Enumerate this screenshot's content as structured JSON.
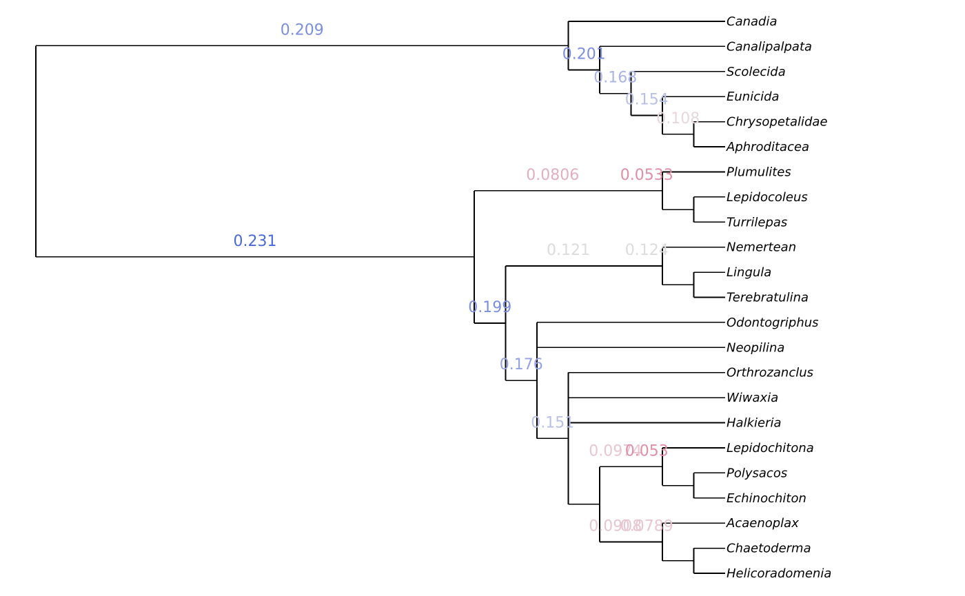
{
  "chart_data": {
    "type": "phylogenetic-tree",
    "tips": [
      "Canadia",
      "Canalipalpata",
      "Scolecida",
      "Eunicida",
      "Chrysopetalidae",
      "Aphroditacea",
      "Plumulites",
      "Lepidocoleus",
      "Turrilepas",
      "Nemertean",
      "Lingula",
      "Terebratulina",
      "Odontogriphus",
      "Neopilina",
      "Orthrozanclus",
      "Wiwaxia",
      "Halkieria",
      "Lepidochitona",
      "Polysacos",
      "Echinochiton",
      "Acaenoplax",
      "Chaetoderma",
      "Helicoradomenia"
    ],
    "tree": {
      "children": [
        {
          "label": "0.209",
          "color": "#7b8edf",
          "children": [
            {
              "tip": "Canadia"
            },
            {
              "label": "0.201",
              "color": "#7b8edf",
              "children": [
                {
                  "tip": "Canalipalpata"
                },
                {
                  "label": "0.168",
                  "color": "#a9b4e6",
                  "children": [
                    {
                      "tip": "Scolecida"
                    },
                    {
                      "label": "0.154",
                      "color": "#b9c0e6",
                      "children": [
                        {
                          "tip": "Eunicida"
                        },
                        {
                          "label": "0.108",
                          "color": "#e8d6dd",
                          "children": [
                            {
                              "tip": "Chrysopetalidae"
                            },
                            {
                              "tip": "Aphroditacea"
                            }
                          ]
                        }
                      ]
                    }
                  ]
                }
              ]
            }
          ]
        },
        {
          "label": "0.231",
          "color": "#4a69d9",
          "children": [
            {
              "label": "0.0806",
              "color": "#e3aebf",
              "children": [
                {
                  "label": "0.0533",
                  "color": "#e08ea6",
                  "children": [
                    {
                      "tip": "Plumulites"
                    },
                    {
                      "children": [
                        {
                          "tip": "Lepidocoleus"
                        },
                        {
                          "tip": "Turrilepas"
                        }
                      ]
                    }
                  ]
                }
              ]
            },
            {
              "label": "0.199",
              "color": "#7b8edf",
              "children": [
                {
                  "label": "0.121",
                  "color": "#dcdcdc",
                  "children": [
                    {
                      "label": "0.124",
                      "color": "#dcdcdc",
                      "children": [
                        {
                          "tip": "Nemertean"
                        },
                        {
                          "children": [
                            {
                              "tip": "Lingula"
                            },
                            {
                              "tip": "Terebratulina"
                            }
                          ]
                        }
                      ]
                    }
                  ]
                },
                {
                  "label": "0.176",
                  "color": "#93a2e2",
                  "children": [
                    {
                      "tip": "Odontogriphus"
                    },
                    {
                      "tip": "Neopilina"
                    },
                    {
                      "label": "0.151",
                      "color": "#b9c0e6",
                      "children": [
                        {
                          "tip": "Orthrozanclus"
                        },
                        {
                          "tip": "Wiwaxia"
                        },
                        {
                          "tip": "Halkieria"
                        },
                        {
                          "children": [
                            {
                              "label": "0.0974",
                              "color": "#e8c6d1",
                              "children": [
                                {
                                  "label": "0.053",
                                  "color": "#e08ea6",
                                  "children": [
                                    {
                                      "tip": "Lepidochitona"
                                    },
                                    {
                                      "children": [
                                        {
                                          "tip": "Polysacos"
                                        },
                                        {
                                          "tip": "Echinochiton"
                                        }
                                      ]
                                    }
                                  ]
                                }
                              ]
                            },
                            {
                              "label": "0.0908",
                              "color": "#e8c6d1",
                              "children": [
                                {
                                  "label": "0.0789",
                                  "color": "#e8c6d1",
                                  "children": [
                                    {
                                      "tip": "Acaenoplax"
                                    },
                                    {
                                      "children": [
                                        {
                                          "tip": "Chaetoderma"
                                        },
                                        {
                                          "tip": "Helicoradomenia"
                                        }
                                      ]
                                    }
                                  ]
                                }
                              ]
                            }
                          ]
                        }
                      ]
                    }
                  ]
                }
              ]
            }
          ]
        }
      ]
    }
  }
}
